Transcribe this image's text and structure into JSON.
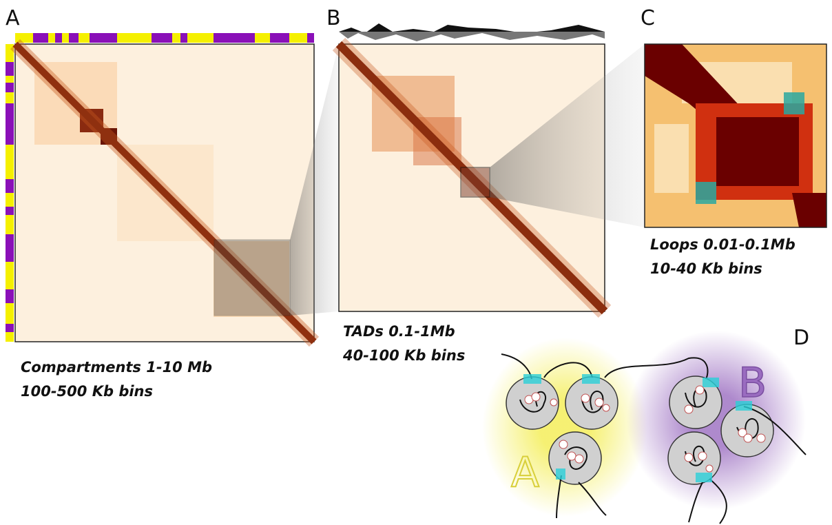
{
  "panels": [
    {
      "label": "A",
      "caption": [
        "Compartments 1-10 Mb",
        "100-500 Kb bins"
      ]
    },
    {
      "label": "B",
      "caption": [
        "TADs 0.1-1Mb",
        "40-100 Kb bins"
      ]
    },
    {
      "label": "C",
      "caption": [
        "Loops 0.01-0.1Mb",
        "10-40 Kb bins"
      ]
    }
  ],
  "diagram": {
    "label": "D",
    "compartment_a": "A",
    "compartment_b": "B"
  }
}
